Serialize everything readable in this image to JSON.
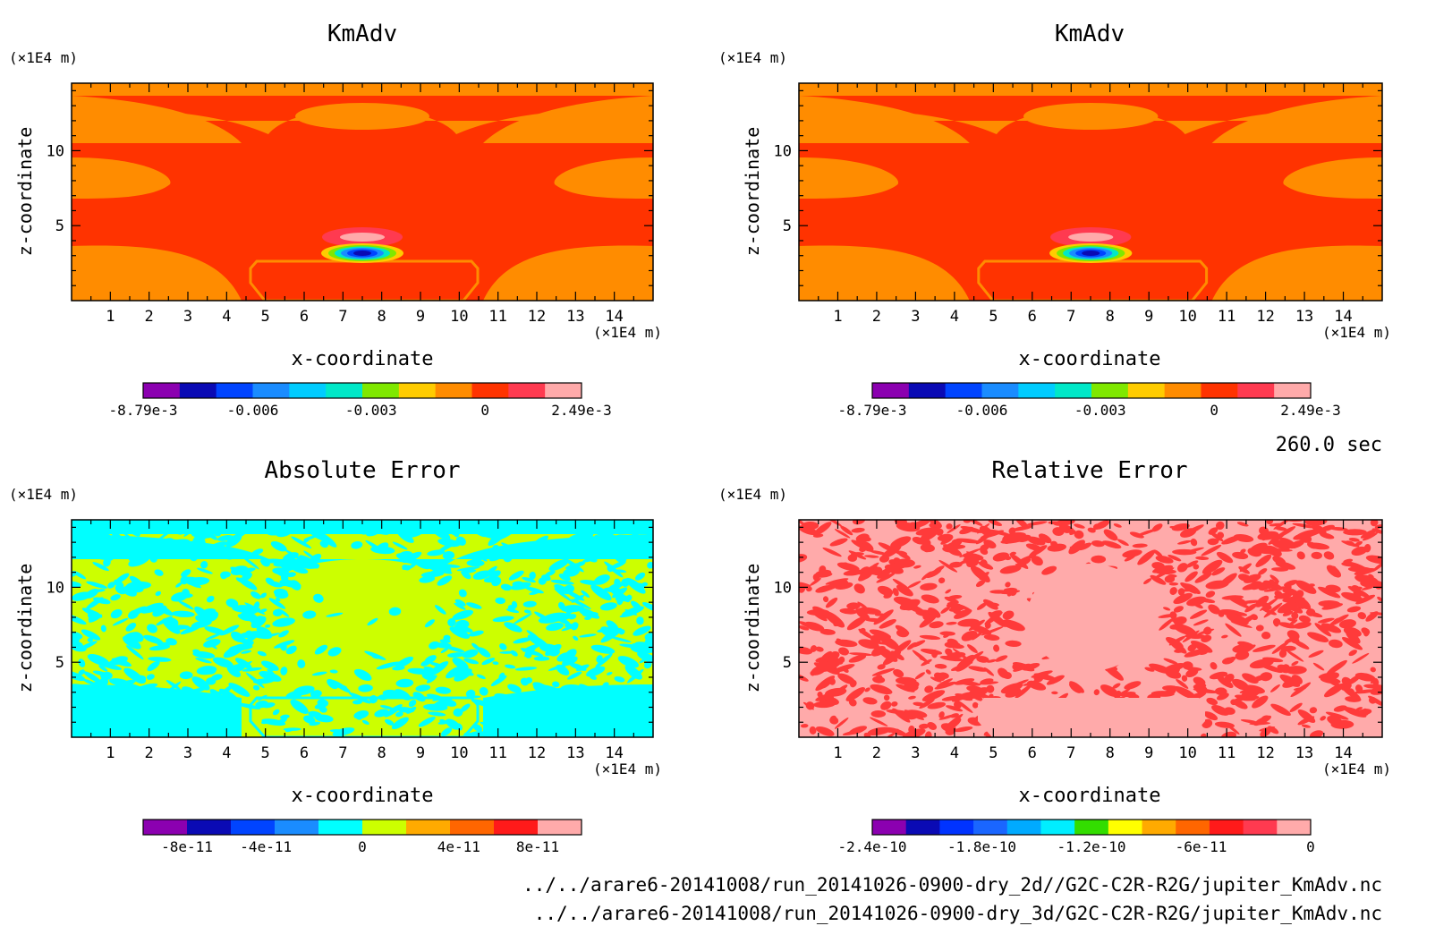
{
  "time_label": "260.0 sec",
  "file_paths": [
    "../../arare6-20141008/run_20141026-0900-dry_2d//G2C-C2R-R2G/jupiter_KmAdv.nc",
    "../../arare6-20141008/run_20141026-0900-dry_3d/G2C-C2R-R2G/jupiter_KmAdv.nc"
  ],
  "chart_data": [
    {
      "type": "heatmap",
      "title": "KmAdv",
      "xlabel": "x-coordinate",
      "ylabel": "z-coordinate",
      "x_unit": "(×1E4 m)",
      "y_unit": "(×1E4 m)",
      "x_ticks": [
        "1",
        "2",
        "3",
        "4",
        "5",
        "6",
        "7",
        "8",
        "9",
        "10",
        "11",
        "12",
        "13",
        "14"
      ],
      "y_ticks": [
        "5",
        "10"
      ],
      "xlim": [
        0,
        15
      ],
      "ylim": [
        0,
        14.5
      ],
      "colorbar": {
        "colors": [
          "#8b00b0",
          "#0a0ab4",
          "#0044ff",
          "#1a8cff",
          "#00ccff",
          "#00e8c8",
          "#7fe800",
          "#ffcc00",
          "#ff8c00",
          "#ff3300",
          "#ff3a50",
          "#ffaaaa"
        ],
        "labels": [
          "-8.79e-3",
          "-0.006",
          "-0.003",
          "0",
          "2.49e-3"
        ]
      }
    },
    {
      "type": "heatmap",
      "title": "KmAdv",
      "xlabel": "x-coordinate",
      "ylabel": "z-coordinate",
      "x_unit": "(×1E4 m)",
      "y_unit": "(×1E4 m)",
      "x_ticks": [
        "1",
        "2",
        "3",
        "4",
        "5",
        "6",
        "7",
        "8",
        "9",
        "10",
        "11",
        "12",
        "13",
        "14"
      ],
      "y_ticks": [
        "5",
        "10"
      ],
      "xlim": [
        0,
        15
      ],
      "ylim": [
        0,
        14.5
      ],
      "colorbar": {
        "colors": [
          "#8b00b0",
          "#0a0ab4",
          "#0044ff",
          "#1a8cff",
          "#00ccff",
          "#00e8c8",
          "#7fe800",
          "#ffcc00",
          "#ff8c00",
          "#ff3300",
          "#ff3a50",
          "#ffaaaa"
        ],
        "labels": [
          "-8.79e-3",
          "-0.006",
          "-0.003",
          "0",
          "2.49e-3"
        ]
      }
    },
    {
      "type": "heatmap",
      "title": "Absolute Error",
      "xlabel": "x-coordinate",
      "ylabel": "z-coordinate",
      "x_unit": "(×1E4 m)",
      "y_unit": "(×1E4 m)",
      "x_ticks": [
        "1",
        "2",
        "3",
        "4",
        "5",
        "6",
        "7",
        "8",
        "9",
        "10",
        "11",
        "12",
        "13",
        "14"
      ],
      "y_ticks": [
        "5",
        "10"
      ],
      "xlim": [
        0,
        15
      ],
      "ylim": [
        0,
        14.5
      ],
      "colorbar": {
        "colors": [
          "#8b00b0",
          "#0a0ab4",
          "#0044ff",
          "#1a8cff",
          "#00ffff",
          "#ccff00",
          "#ffaa00",
          "#ff6600",
          "#ff1a1a",
          "#ffaaaa"
        ],
        "labels": [
          "-8e-11",
          "-4e-11",
          "0",
          "4e-11",
          "8e-11"
        ]
      }
    },
    {
      "type": "heatmap",
      "title": "Relative Error",
      "xlabel": "x-coordinate",
      "ylabel": "z-coordinate",
      "x_unit": "(×1E4 m)",
      "y_unit": "(×1E4 m)",
      "x_ticks": [
        "1",
        "2",
        "3",
        "4",
        "5",
        "6",
        "7",
        "8",
        "9",
        "10",
        "11",
        "12",
        "13",
        "14"
      ],
      "y_ticks": [
        "5",
        "10"
      ],
      "xlim": [
        0,
        15
      ],
      "ylim": [
        0,
        14.5
      ],
      "colorbar": {
        "colors": [
          "#8b00b0",
          "#0a0ab4",
          "#0033ff",
          "#1a66ff",
          "#00aaff",
          "#00eeff",
          "#33dd00",
          "#ffff00",
          "#ffaa00",
          "#ff6600",
          "#ff1a1a",
          "#ff3a50",
          "#ffaaaa"
        ],
        "labels": [
          "-2.4e-10",
          "-1.8e-10",
          "-1.2e-10",
          "-6e-11",
          "0"
        ]
      }
    }
  ]
}
